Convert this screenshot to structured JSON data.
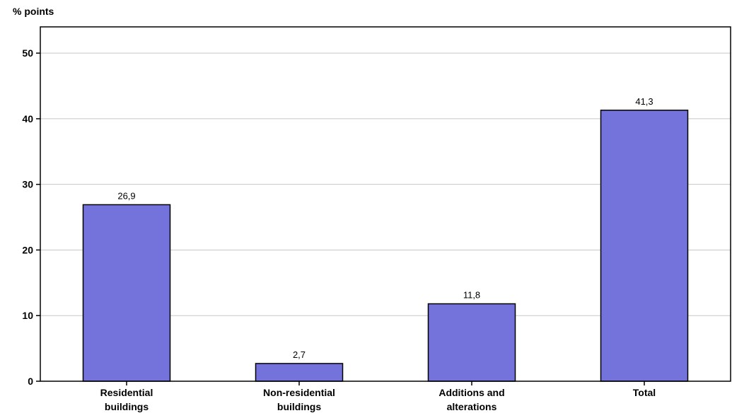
{
  "chart_data": {
    "type": "bar",
    "ylabel": "% points",
    "categories": [
      [
        "Residential",
        "buildings"
      ],
      [
        "Non-residential",
        "buildings"
      ],
      [
        "Additions and",
        "alterations"
      ],
      [
        "Total"
      ]
    ],
    "values": [
      26.9,
      2.7,
      11.8,
      41.3
    ],
    "value_labels": [
      "26,9",
      "2,7",
      "11,8",
      "41,3"
    ],
    "ylim": [
      0,
      54
    ],
    "yticks": [
      0,
      10,
      20,
      30,
      40,
      50
    ],
    "grid": true,
    "bar_color": "#7472db",
    "bar_edge_color": "#000000"
  }
}
